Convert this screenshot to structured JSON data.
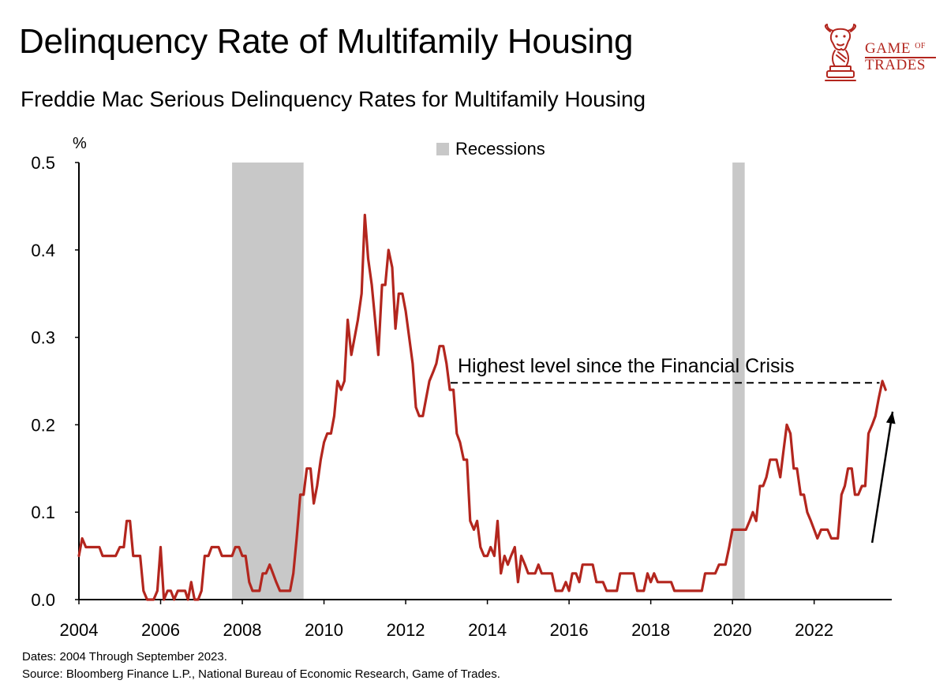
{
  "header": {
    "title": "Delinquency Rate of Multifamily Housing",
    "subtitle": "Freddie Mac Serious Delinquency Rates for Multifamily Housing"
  },
  "logo": {
    "line1": "Game",
    "line1_small": "of",
    "line2": "Trades",
    "icon": "bull-knight-chess-piece-icon",
    "color": "#b3261e"
  },
  "footnotes": {
    "dates": "Dates: 2004 Through September 2023.",
    "source": "Source: Bloomberg Finance L.P., National Bureau of Economic Research, Game of Trades."
  },
  "chart_data": {
    "type": "line",
    "title": "Delinquency Rate of Multifamily Housing",
    "subtitle": "Freddie Mac Serious Delinquency Rates for Multifamily Housing",
    "ylabel": "%",
    "xlabel": "",
    "xlim": [
      2004,
      2023.9
    ],
    "ylim": [
      0,
      0.5
    ],
    "xticks": [
      2004,
      2006,
      2008,
      2010,
      2012,
      2014,
      2016,
      2018,
      2020,
      2022
    ],
    "yticks": [
      "0.0",
      "0.1",
      "0.2",
      "0.3",
      "0.4",
      "0.5"
    ],
    "grid": false,
    "legend": {
      "position": "top-center",
      "entries": [
        {
          "name": "Recessions",
          "color": "#c8c8c8"
        }
      ]
    },
    "recessions": [
      {
        "start": 2007.75,
        "end": 2009.5
      },
      {
        "start": 2020.0,
        "end": 2020.3
      }
    ],
    "series": [
      {
        "color": "#b3261e",
        "points": [
          [
            2004.0,
            0.05
          ],
          [
            2004.08,
            0.07
          ],
          [
            2004.17,
            0.06
          ],
          [
            2004.5,
            0.06
          ],
          [
            2004.58,
            0.05
          ],
          [
            2004.9,
            0.05
          ],
          [
            2005.0,
            0.06
          ],
          [
            2005.1,
            0.06
          ],
          [
            2005.17,
            0.09
          ],
          [
            2005.25,
            0.09
          ],
          [
            2005.33,
            0.05
          ],
          [
            2005.5,
            0.05
          ],
          [
            2005.58,
            0.01
          ],
          [
            2005.67,
            0.0
          ],
          [
            2005.83,
            0.0
          ],
          [
            2005.92,
            0.01
          ],
          [
            2006.0,
            0.06
          ],
          [
            2006.08,
            0.0
          ],
          [
            2006.17,
            0.01
          ],
          [
            2006.25,
            0.01
          ],
          [
            2006.33,
            0.0
          ],
          [
            2006.42,
            0.01
          ],
          [
            2006.6,
            0.01
          ],
          [
            2006.67,
            0.0
          ],
          [
            2006.75,
            0.02
          ],
          [
            2006.83,
            0.0
          ],
          [
            2006.92,
            0.0
          ],
          [
            2007.0,
            0.01
          ],
          [
            2007.08,
            0.05
          ],
          [
            2007.17,
            0.05
          ],
          [
            2007.25,
            0.06
          ],
          [
            2007.42,
            0.06
          ],
          [
            2007.5,
            0.05
          ],
          [
            2007.75,
            0.05
          ],
          [
            2007.83,
            0.06
          ],
          [
            2007.92,
            0.06
          ],
          [
            2008.0,
            0.05
          ],
          [
            2008.08,
            0.05
          ],
          [
            2008.17,
            0.02
          ],
          [
            2008.25,
            0.01
          ],
          [
            2008.42,
            0.01
          ],
          [
            2008.5,
            0.03
          ],
          [
            2008.58,
            0.03
          ],
          [
            2008.67,
            0.04
          ],
          [
            2008.75,
            0.03
          ],
          [
            2008.83,
            0.02
          ],
          [
            2008.92,
            0.01
          ],
          [
            2009.17,
            0.01
          ],
          [
            2009.25,
            0.03
          ],
          [
            2009.33,
            0.07
          ],
          [
            2009.42,
            0.12
          ],
          [
            2009.5,
            0.12
          ],
          [
            2009.58,
            0.15
          ],
          [
            2009.67,
            0.15
          ],
          [
            2009.75,
            0.11
          ],
          [
            2009.83,
            0.13
          ],
          [
            2009.92,
            0.16
          ],
          [
            2010.0,
            0.18
          ],
          [
            2010.08,
            0.19
          ],
          [
            2010.17,
            0.19
          ],
          [
            2010.25,
            0.21
          ],
          [
            2010.33,
            0.25
          ],
          [
            2010.42,
            0.24
          ],
          [
            2010.5,
            0.25
          ],
          [
            2010.58,
            0.32
          ],
          [
            2010.67,
            0.28
          ],
          [
            2010.75,
            0.3
          ],
          [
            2010.83,
            0.32
          ],
          [
            2010.92,
            0.35
          ],
          [
            2011.0,
            0.44
          ],
          [
            2011.08,
            0.39
          ],
          [
            2011.17,
            0.36
          ],
          [
            2011.25,
            0.32
          ],
          [
            2011.33,
            0.28
          ],
          [
            2011.42,
            0.36
          ],
          [
            2011.5,
            0.36
          ],
          [
            2011.58,
            0.4
          ],
          [
            2011.67,
            0.38
          ],
          [
            2011.75,
            0.31
          ],
          [
            2011.83,
            0.35
          ],
          [
            2011.92,
            0.35
          ],
          [
            2012.0,
            0.33
          ],
          [
            2012.17,
            0.27
          ],
          [
            2012.25,
            0.22
          ],
          [
            2012.33,
            0.21
          ],
          [
            2012.42,
            0.21
          ],
          [
            2012.5,
            0.23
          ],
          [
            2012.58,
            0.25
          ],
          [
            2012.67,
            0.26
          ],
          [
            2012.75,
            0.27
          ],
          [
            2012.83,
            0.29
          ],
          [
            2012.92,
            0.29
          ],
          [
            2013.0,
            0.27
          ],
          [
            2013.08,
            0.24
          ],
          [
            2013.17,
            0.24
          ],
          [
            2013.25,
            0.19
          ],
          [
            2013.33,
            0.18
          ],
          [
            2013.42,
            0.16
          ],
          [
            2013.5,
            0.16
          ],
          [
            2013.58,
            0.09
          ],
          [
            2013.67,
            0.08
          ],
          [
            2013.75,
            0.09
          ],
          [
            2013.83,
            0.06
          ],
          [
            2013.92,
            0.05
          ],
          [
            2014.0,
            0.05
          ],
          [
            2014.08,
            0.06
          ],
          [
            2014.17,
            0.05
          ],
          [
            2014.25,
            0.09
          ],
          [
            2014.33,
            0.03
          ],
          [
            2014.42,
            0.05
          ],
          [
            2014.5,
            0.04
          ],
          [
            2014.58,
            0.05
          ],
          [
            2014.67,
            0.06
          ],
          [
            2014.75,
            0.02
          ],
          [
            2014.83,
            0.05
          ],
          [
            2014.92,
            0.04
          ],
          [
            2015.0,
            0.03
          ],
          [
            2015.17,
            0.03
          ],
          [
            2015.25,
            0.04
          ],
          [
            2015.33,
            0.03
          ],
          [
            2015.58,
            0.03
          ],
          [
            2015.67,
            0.01
          ],
          [
            2015.83,
            0.01
          ],
          [
            2015.92,
            0.02
          ],
          [
            2016.0,
            0.01
          ],
          [
            2016.08,
            0.03
          ],
          [
            2016.17,
            0.03
          ],
          [
            2016.25,
            0.02
          ],
          [
            2016.33,
            0.04
          ],
          [
            2016.58,
            0.04
          ],
          [
            2016.67,
            0.02
          ],
          [
            2016.83,
            0.02
          ],
          [
            2016.92,
            0.01
          ],
          [
            2017.17,
            0.01
          ],
          [
            2017.25,
            0.03
          ],
          [
            2017.58,
            0.03
          ],
          [
            2017.67,
            0.01
          ],
          [
            2017.83,
            0.01
          ],
          [
            2017.92,
            0.03
          ],
          [
            2018.0,
            0.02
          ],
          [
            2018.08,
            0.03
          ],
          [
            2018.17,
            0.02
          ],
          [
            2018.5,
            0.02
          ],
          [
            2018.58,
            0.01
          ],
          [
            2019.25,
            0.01
          ],
          [
            2019.33,
            0.03
          ],
          [
            2019.58,
            0.03
          ],
          [
            2019.67,
            0.04
          ],
          [
            2019.83,
            0.04
          ],
          [
            2019.92,
            0.06
          ],
          [
            2020.0,
            0.08
          ],
          [
            2020.33,
            0.08
          ],
          [
            2020.42,
            0.09
          ],
          [
            2020.5,
            0.1
          ],
          [
            2020.58,
            0.09
          ],
          [
            2020.67,
            0.13
          ],
          [
            2020.75,
            0.13
          ],
          [
            2020.83,
            0.14
          ],
          [
            2020.92,
            0.16
          ],
          [
            2021.08,
            0.16
          ],
          [
            2021.17,
            0.14
          ],
          [
            2021.25,
            0.17
          ],
          [
            2021.33,
            0.2
          ],
          [
            2021.42,
            0.19
          ],
          [
            2021.5,
            0.15
          ],
          [
            2021.58,
            0.15
          ],
          [
            2021.67,
            0.12
          ],
          [
            2021.75,
            0.12
          ],
          [
            2021.83,
            0.1
          ],
          [
            2021.92,
            0.09
          ],
          [
            2022.0,
            0.08
          ],
          [
            2022.08,
            0.07
          ],
          [
            2022.17,
            0.08
          ],
          [
            2022.33,
            0.08
          ],
          [
            2022.42,
            0.07
          ],
          [
            2022.58,
            0.07
          ],
          [
            2022.67,
            0.12
          ],
          [
            2022.75,
            0.13
          ],
          [
            2022.83,
            0.15
          ],
          [
            2022.92,
            0.15
          ],
          [
            2023.0,
            0.12
          ],
          [
            2023.08,
            0.12
          ],
          [
            2023.17,
            0.13
          ],
          [
            2023.25,
            0.13
          ],
          [
            2023.33,
            0.19
          ],
          [
            2023.42,
            0.2
          ],
          [
            2023.5,
            0.21
          ],
          [
            2023.58,
            0.23
          ],
          [
            2023.67,
            0.25
          ],
          [
            2023.75,
            0.24
          ]
        ]
      }
    ],
    "annotations": [
      {
        "type": "hline",
        "y": 0.248,
        "x_start": 2013.1,
        "x_end": 2023.6,
        "style": "dashed",
        "text": "Highest level since the Financial Crisis"
      },
      {
        "type": "arrow",
        "x_start": 2023.42,
        "y_start": 0.065,
        "x_end": 2023.92,
        "y_end": 0.215
      }
    ]
  }
}
